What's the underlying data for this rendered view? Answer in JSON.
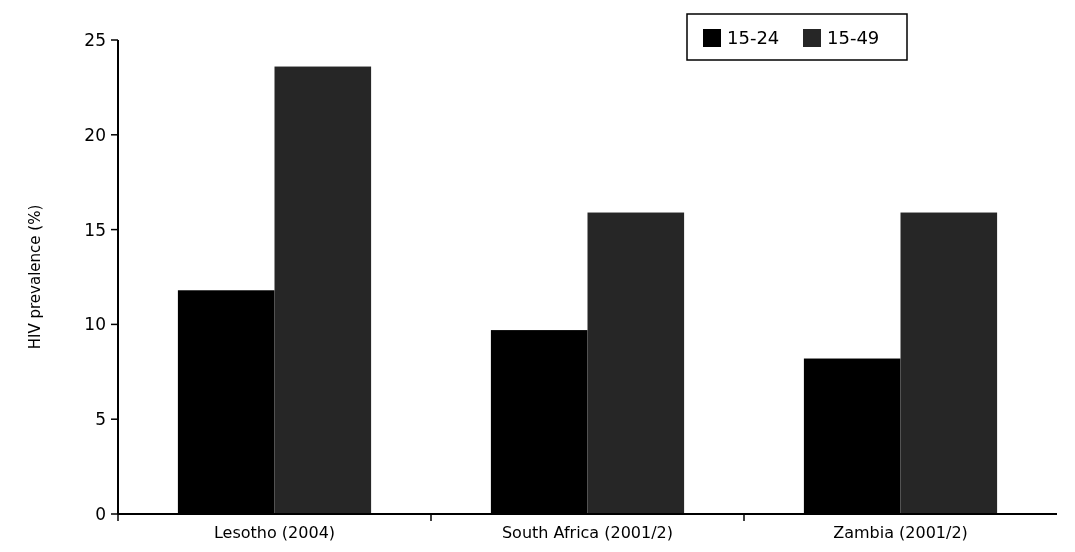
{
  "chart_data": {
    "type": "bar",
    "ylabel": "HIV prevalence (%)",
    "categories": [
      "Lesotho (2004)",
      "South Africa (2001/2)",
      "Zambia (2001/2)"
    ],
    "series": [
      {
        "name": "15-24",
        "color": "#000000",
        "values": [
          11.8,
          9.7,
          8.2
        ]
      },
      {
        "name": "15-49",
        "color": "#262626",
        "values": [
          23.6,
          15.9,
          15.9
        ]
      }
    ],
    "ylim": [
      0,
      25
    ],
    "yticks": [
      0,
      5,
      10,
      15,
      20,
      25
    ],
    "legend": "top right"
  }
}
